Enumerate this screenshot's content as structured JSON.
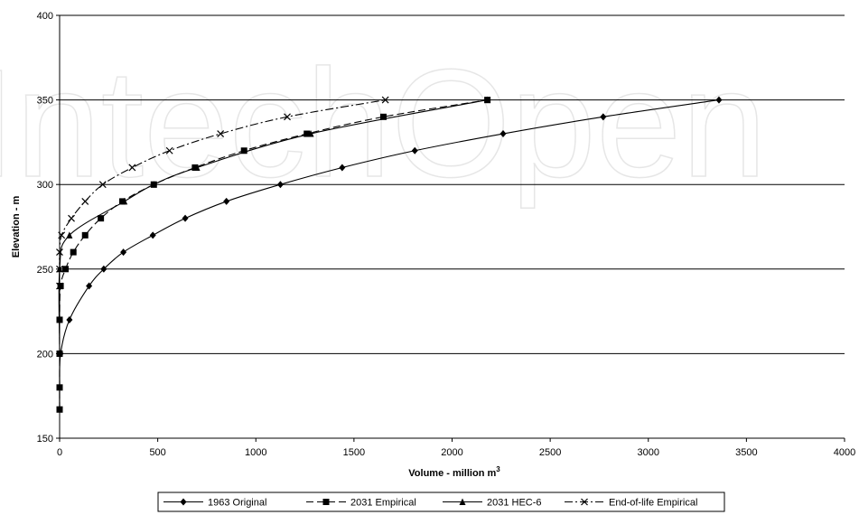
{
  "watermark": {
    "text": "IntechOpen"
  },
  "chart_data": {
    "type": "line",
    "title": "",
    "xlabel": "Volume - million m³",
    "ylabel": "Elevation - m",
    "xlim": [
      0,
      4000
    ],
    "ylim": [
      150,
      400
    ],
    "x_ticks": [
      0,
      500,
      1000,
      1500,
      2000,
      2500,
      3000,
      3500,
      4000
    ],
    "y_ticks": [
      150,
      200,
      250,
      300,
      350,
      400
    ],
    "grid": "horizontal",
    "legend_position": "bottom",
    "series": [
      {
        "name": "1963 Original",
        "marker": "diamond",
        "dash": "",
        "points": [
          [
            0,
            167
          ],
          [
            0,
            180
          ],
          [
            5,
            200
          ],
          [
            50,
            220
          ],
          [
            150,
            240
          ],
          [
            225,
            250
          ],
          [
            325,
            260
          ],
          [
            475,
            270
          ],
          [
            640,
            280
          ],
          [
            850,
            290
          ],
          [
            1125,
            300
          ],
          [
            1440,
            310
          ],
          [
            1810,
            320
          ],
          [
            2260,
            330
          ],
          [
            2770,
            340
          ],
          [
            3360,
            350
          ]
        ]
      },
      {
        "name": "2031 Empirical",
        "marker": "square",
        "dash": "8,4",
        "points": [
          [
            0,
            167
          ],
          [
            0,
            180
          ],
          [
            0,
            200
          ],
          [
            0,
            220
          ],
          [
            5,
            240
          ],
          [
            30,
            250
          ],
          [
            70,
            260
          ],
          [
            130,
            270
          ],
          [
            210,
            280
          ],
          [
            320,
            290
          ],
          [
            480,
            300
          ],
          [
            690,
            310
          ],
          [
            940,
            320
          ],
          [
            1260,
            330
          ],
          [
            1650,
            340
          ],
          [
            2180,
            350
          ]
        ]
      },
      {
        "name": "2031 HEC-6",
        "marker": "triangle",
        "dash": "",
        "points": [
          [
            0,
            167
          ],
          [
            0,
            200
          ],
          [
            0,
            250
          ],
          [
            50,
            270
          ],
          [
            330,
            290
          ],
          [
            480,
            300
          ],
          [
            700,
            310
          ],
          [
            1280,
            330
          ],
          [
            2180,
            350
          ]
        ]
      },
      {
        "name": "End-of-life Empirical",
        "marker": "x",
        "dash": "9,3,2,3",
        "points": [
          [
            0,
            240
          ],
          [
            0,
            250
          ],
          [
            0,
            260
          ],
          [
            10,
            270
          ],
          [
            60,
            280
          ],
          [
            130,
            290
          ],
          [
            220,
            300
          ],
          [
            370,
            310
          ],
          [
            560,
            320
          ],
          [
            820,
            330
          ],
          [
            1160,
            340
          ],
          [
            1660,
            350
          ]
        ]
      }
    ]
  }
}
